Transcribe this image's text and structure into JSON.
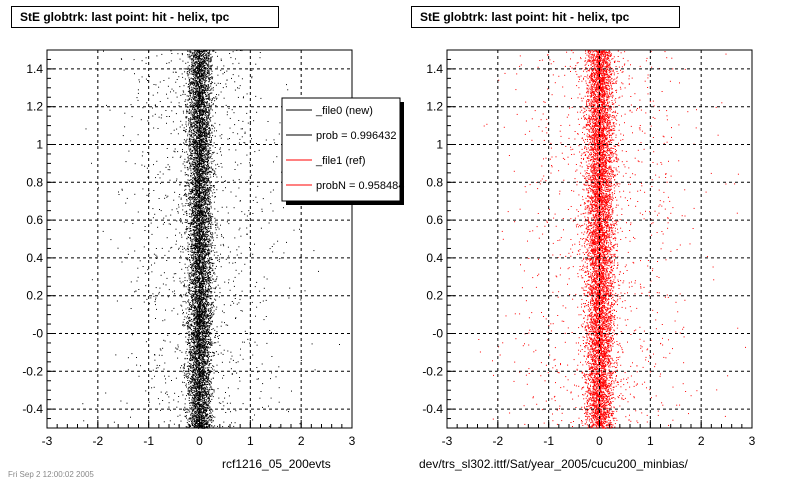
{
  "chart_data": [
    {
      "type": "scatter",
      "title": "StE globtrk: last point: hit - helix, tpc",
      "xlabel": "rcf1216_05_200evts",
      "ylabel": "",
      "xlim": [
        -3,
        3
      ],
      "ylim": [
        -0.5,
        1.5
      ],
      "x_ticks": [
        "-3",
        "-2",
        "-1",
        "0",
        "1",
        "2",
        "3"
      ],
      "y_ticks": [
        "-0.4",
        "-0.2",
        "-0",
        "0.2",
        "0.4",
        "0.6",
        "0.8",
        "1",
        "1.2",
        "1.4"
      ],
      "grid": true,
      "series": [
        {
          "name": "_file0 (new)",
          "color": "#000000",
          "distribution": {
            "center": 0.0,
            "core_sigma": 0.12,
            "tail_sigma": 0.8
          }
        }
      ],
      "legend": {
        "placement": "top-right",
        "entries": [
          {
            "label": "_file0 (new)",
            "color": "#000000"
          },
          {
            "label": "prob = 0.996432",
            "color": "#000000"
          },
          {
            "label": "_file1 (ref)",
            "color": "#ff0000"
          },
          {
            "label": "probN = 0.958484",
            "color": "#ff0000"
          }
        ]
      }
    },
    {
      "type": "scatter",
      "title": "StE globtrk: last point: hit - helix, tpc",
      "xlabel": "dev/trs_sl302.ittf/Sat/year_2005/cucu200_minbias/",
      "ylabel": "",
      "xlim": [
        -3,
        3
      ],
      "ylim": [
        -0.5,
        1.5
      ],
      "x_ticks": [
        "-3",
        "-2",
        "-1",
        "0",
        "1",
        "2",
        "3"
      ],
      "y_ticks": [
        "-0.4",
        "-0.2",
        "-0",
        "0.2",
        "0.4",
        "0.6",
        "0.8",
        "1",
        "1.2",
        "1.4"
      ],
      "grid": true,
      "series": [
        {
          "name": "_file1 (ref)",
          "color": "#ff0000",
          "distribution": {
            "center": 0.0,
            "core_sigma": 0.14,
            "tail_sigma": 0.9
          }
        }
      ]
    }
  ],
  "footer": "Fri Sep  2 12:00:02 2005"
}
